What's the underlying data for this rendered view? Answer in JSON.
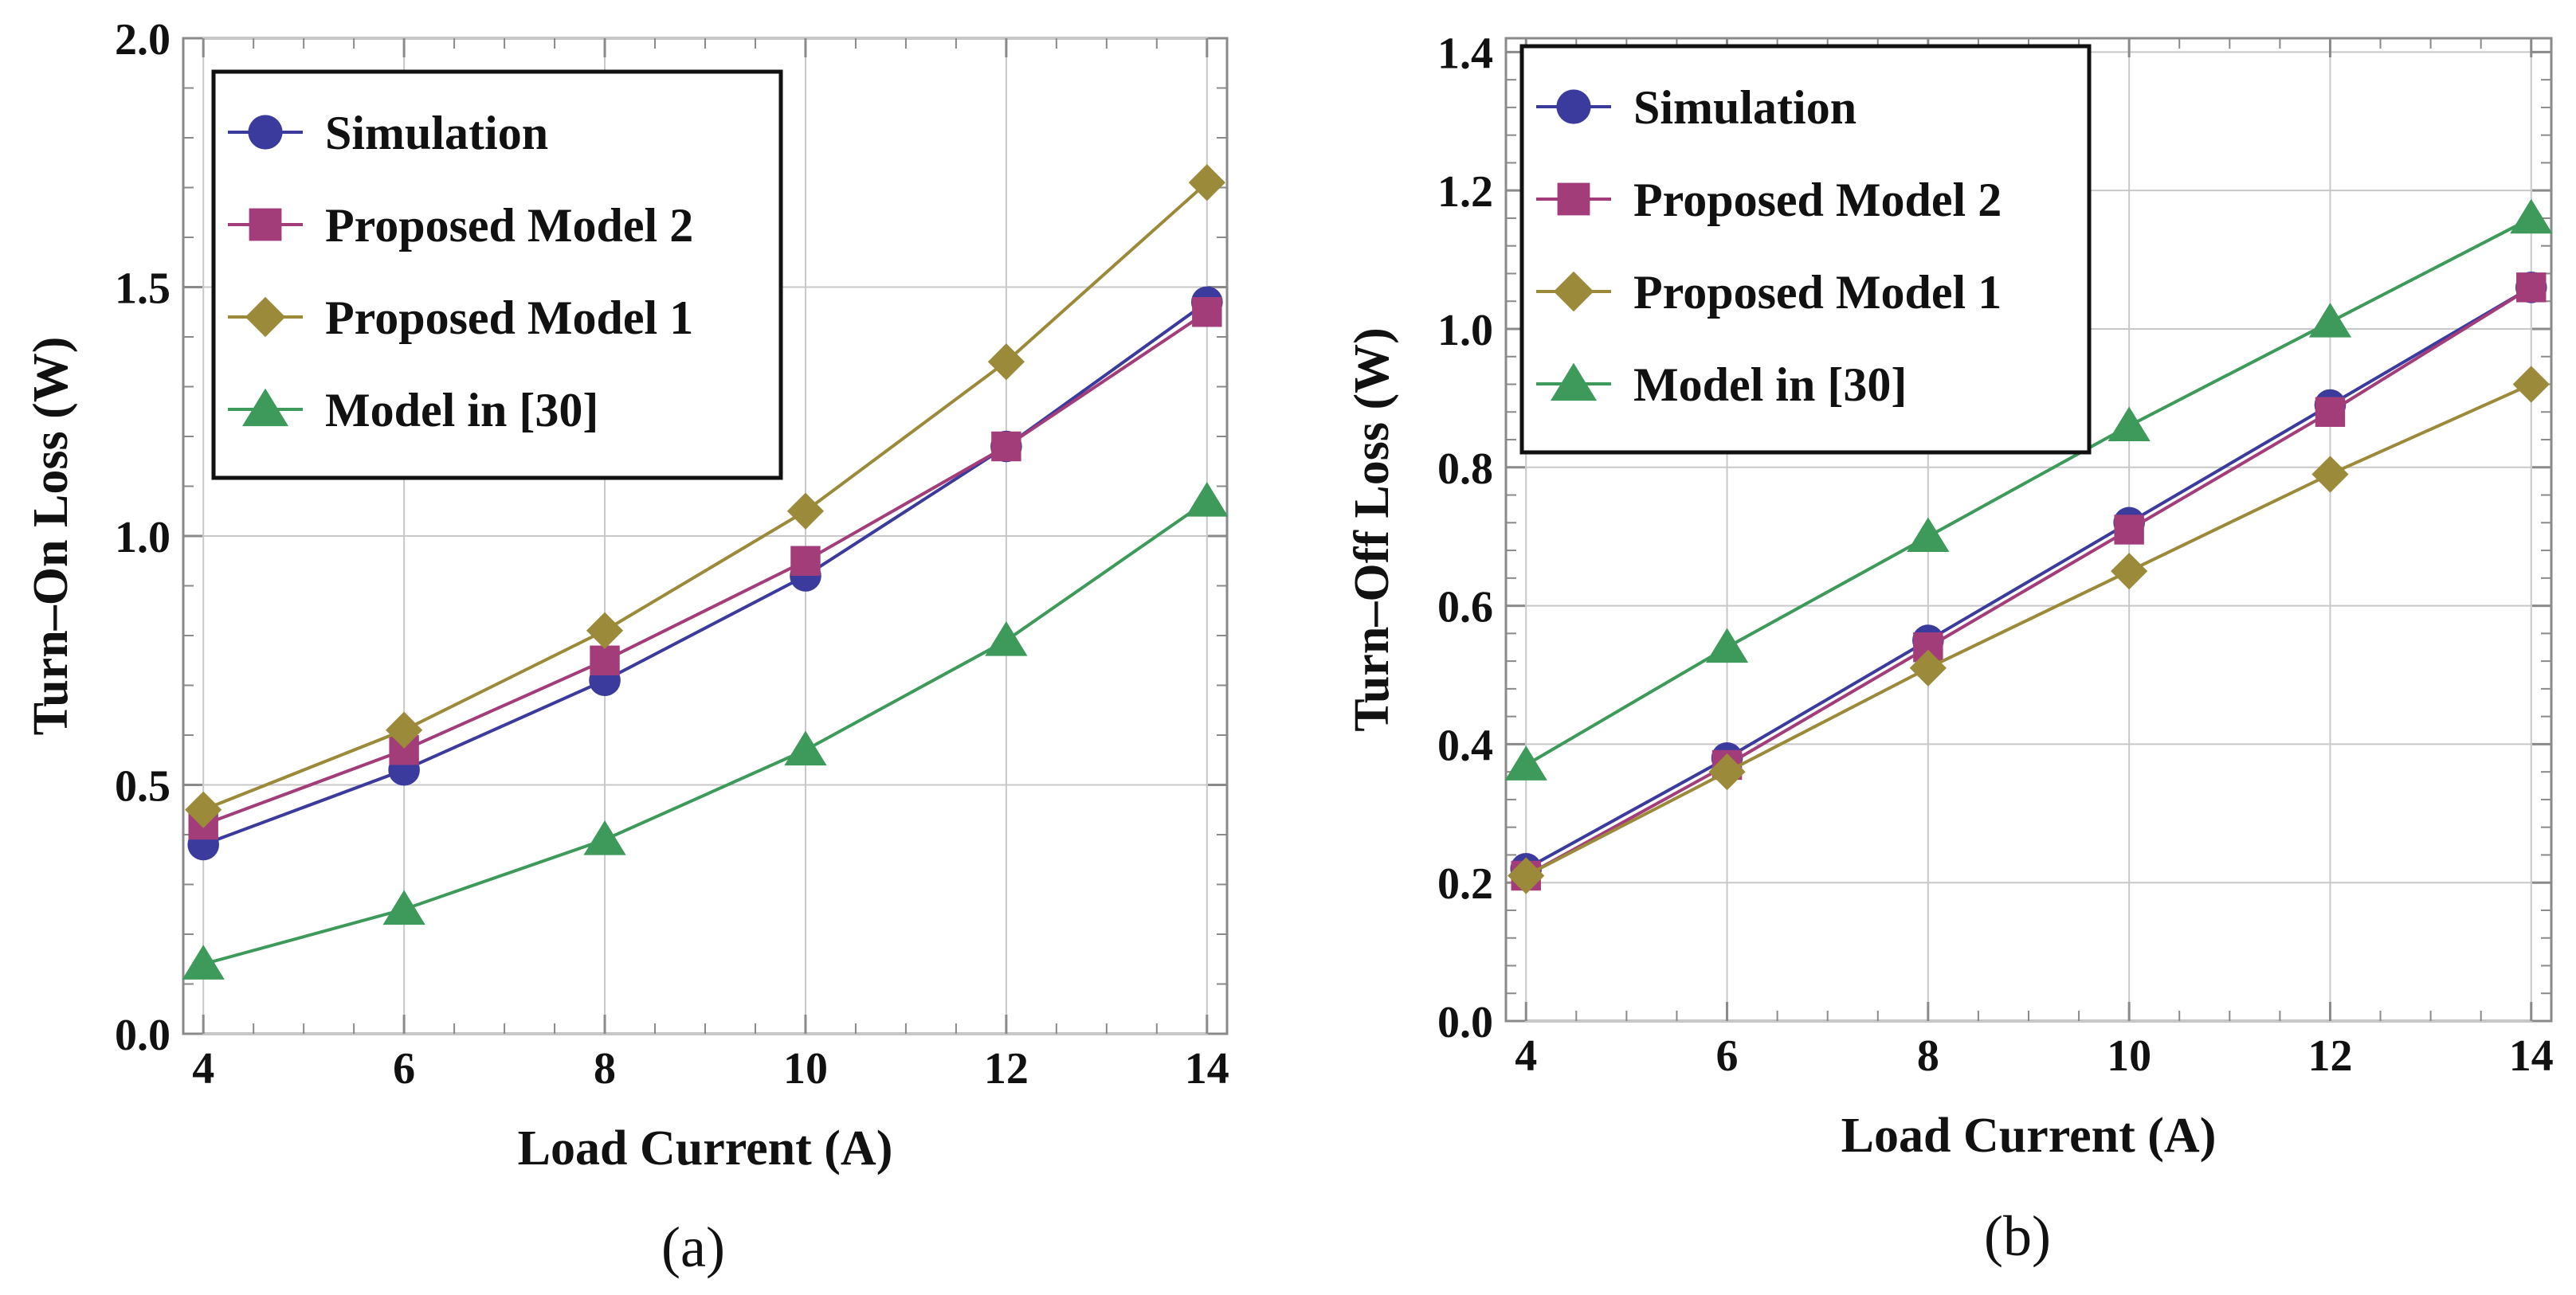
{
  "chart_data": [
    {
      "type": "line",
      "panel_label": "(a)",
      "xlabel": "Load Current (A)",
      "ylabel": "Turn–On Loss (W)",
      "xlim": [
        3.8,
        14.2
      ],
      "ylim": [
        0.0,
        2.0
      ],
      "xticks": [
        "4",
        "6",
        "8",
        "10",
        "12",
        "14"
      ],
      "yticks": [
        "0.0",
        "0.5",
        "1.0",
        "1.5",
        "2.0"
      ],
      "grid": true,
      "legend_position": "top-left",
      "x": [
        4,
        6,
        8,
        10,
        12,
        14
      ],
      "series": [
        {
          "name": "Simulation",
          "marker": "circle",
          "color": "#3b3b9e",
          "values": [
            0.38,
            0.53,
            0.71,
            0.92,
            1.18,
            1.47
          ]
        },
        {
          "name": "Proposed Model 2",
          "marker": "square",
          "color": "#a33d7a",
          "values": [
            0.42,
            0.57,
            0.75,
            0.95,
            1.18,
            1.45
          ]
        },
        {
          "name": "Proposed Model 1",
          "marker": "diamond",
          "color": "#9b8a3a",
          "values": [
            0.45,
            0.61,
            0.81,
            1.05,
            1.35,
            1.71
          ]
        },
        {
          "name": "Model in [30]",
          "marker": "triangle",
          "color": "#3d9a5a",
          "values": [
            0.14,
            0.25,
            0.39,
            0.57,
            0.79,
            1.07
          ]
        }
      ]
    },
    {
      "type": "line",
      "panel_label": "(b)",
      "xlabel": "Load Current (A)",
      "ylabel": "Turn–Off Loss (W)",
      "xlim": [
        3.8,
        14.2
      ],
      "ylim": [
        0.0,
        1.42
      ],
      "xticks": [
        "4",
        "6",
        "8",
        "10",
        "12",
        "14"
      ],
      "yticks": [
        "0.0",
        "0.2",
        "0.4",
        "0.6",
        "0.8",
        "1.0",
        "1.2",
        "1.4"
      ],
      "grid": true,
      "legend_position": "top-left",
      "x": [
        4,
        6,
        8,
        10,
        12,
        14
      ],
      "series": [
        {
          "name": "Simulation",
          "marker": "circle",
          "color": "#3b3b9e",
          "values": [
            0.22,
            0.38,
            0.55,
            0.72,
            0.89,
            1.06
          ]
        },
        {
          "name": "Proposed Model 2",
          "marker": "square",
          "color": "#a33d7a",
          "values": [
            0.21,
            0.37,
            0.54,
            0.71,
            0.88,
            1.06
          ]
        },
        {
          "name": "Proposed Model 1",
          "marker": "diamond",
          "color": "#9b8a3a",
          "values": [
            0.21,
            0.36,
            0.51,
            0.65,
            0.79,
            0.92
          ]
        },
        {
          "name": "Model in [30]",
          "marker": "triangle",
          "color": "#3d9a5a",
          "values": [
            0.37,
            0.54,
            0.7,
            0.86,
            1.01,
            1.16
          ]
        }
      ]
    }
  ]
}
